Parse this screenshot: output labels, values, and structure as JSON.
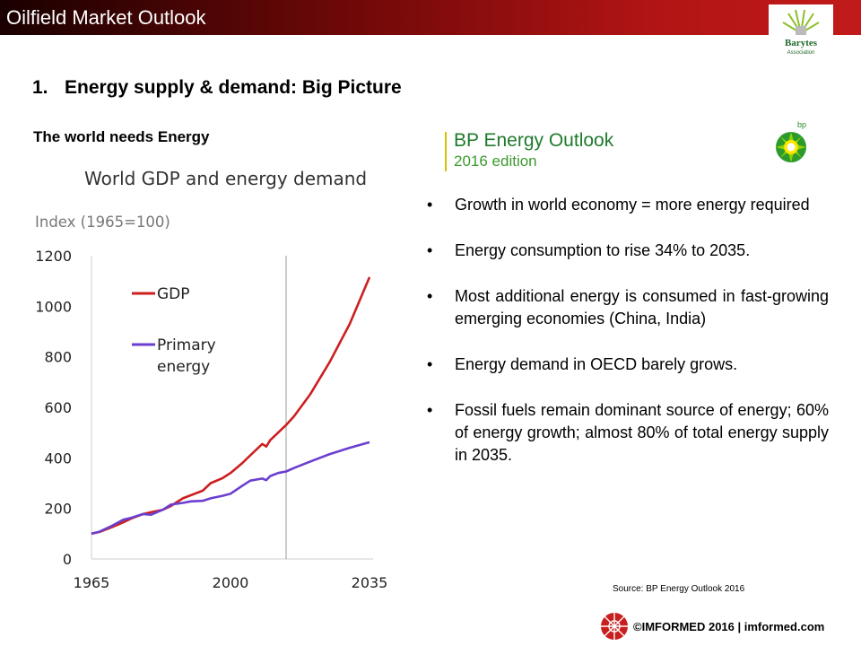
{
  "header": {
    "title": "Oilfield Market Outlook"
  },
  "logo": {
    "text_top": "Barytes",
    "text_bottom": "Association"
  },
  "section": {
    "number": "1.",
    "title": "Energy supply & demand: Big Picture"
  },
  "subheading": "The world needs Energy",
  "bp": {
    "title": "BP Energy Outlook",
    "edition": "2016 edition",
    "logo_text": "bp"
  },
  "bullets": [
    {
      "text": "Growth in world economy = more energy required"
    },
    {
      "text": "Energy consumption to rise 34% to 2035."
    },
    {
      "text": "Most additional energy is consumed in fast-growing emerging economies (China, India)"
    },
    {
      "text": "Energy demand in OECD barely grows."
    },
    {
      "text": "Fossil fuels remain dominant source of energy; 60% of energy growth; almost 80% of total energy supply in 2035."
    }
  ],
  "source": "Source: BP Energy Outlook 2016",
  "footer": {
    "text": "©IMFORMED 2016  | imformed.com"
  },
  "colors": {
    "gdp": "#cc1f1f",
    "energy": "#6a3fd0",
    "projection_line": "#999999"
  },
  "chart_data": {
    "type": "line",
    "title": "World GDP and energy demand",
    "ylabel": "Index (1965=100)",
    "xlabel": "",
    "xlim": [
      1965,
      2035
    ],
    "ylim": [
      0,
      1200
    ],
    "x_ticks": [
      1965,
      2000,
      2035
    ],
    "y_ticks": [
      0,
      200,
      400,
      600,
      800,
      1000,
      1200
    ],
    "projection_start": 2014,
    "legend": "upper-left inside",
    "grid": false,
    "series": [
      {
        "name": "GDP",
        "color": "#cc1f1f",
        "x": [
          1965,
          1967,
          1970,
          1973,
          1975,
          1978,
          1980,
          1983,
          1985,
          1988,
          1990,
          1993,
          1995,
          1998,
          2000,
          2003,
          2005,
          2008,
          2009,
          2010,
          2012,
          2014,
          2016,
          2020,
          2025,
          2030,
          2035
        ],
        "y": [
          100,
          107,
          125,
          145,
          160,
          178,
          185,
          195,
          210,
          240,
          252,
          270,
          300,
          320,
          340,
          380,
          410,
          455,
          445,
          470,
          500,
          530,
          565,
          650,
          780,
          930,
          1115
        ]
      },
      {
        "name": "Primary energy",
        "color": "#6a3fd0",
        "x": [
          1965,
          1967,
          1970,
          1973,
          1975,
          1978,
          1980,
          1983,
          1985,
          1988,
          1990,
          1993,
          1995,
          1998,
          2000,
          2003,
          2005,
          2008,
          2009,
          2010,
          2012,
          2014,
          2016,
          2020,
          2025,
          2030,
          2035
        ],
        "y": [
          100,
          108,
          130,
          155,
          163,
          178,
          175,
          195,
          215,
          222,
          228,
          230,
          240,
          250,
          258,
          290,
          310,
          318,
          312,
          328,
          340,
          346,
          360,
          385,
          415,
          440,
          462
        ]
      }
    ]
  }
}
